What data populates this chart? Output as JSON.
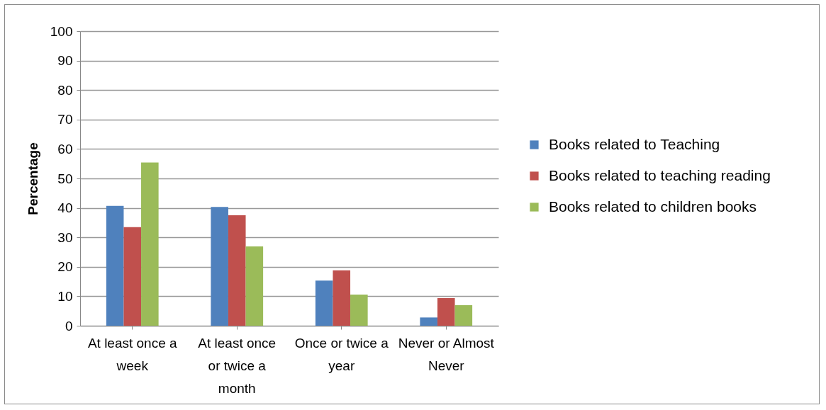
{
  "chart_data": {
    "type": "bar",
    "ylabel": "Percentage",
    "categories": [
      "At least once a week",
      "At least once or twice a month",
      "Once or twice a year",
      "Never or Almost Never"
    ],
    "series": [
      {
        "name": "Books related to Teaching",
        "color": "#4f81bd",
        "values": [
          40.7,
          40.3,
          15.3,
          2.8
        ]
      },
      {
        "name": "Books related to teaching reading",
        "color": "#c0504d",
        "values": [
          33.5,
          37.5,
          18.8,
          9.4
        ]
      },
      {
        "name": "Books related to children books",
        "color": "#9bbb59",
        "values": [
          55.4,
          26.9,
          10.6,
          7.0
        ]
      }
    ],
    "ylim": [
      0,
      100
    ],
    "yticks": [
      0,
      10,
      20,
      30,
      40,
      50,
      60,
      70,
      80,
      90,
      100
    ],
    "grid": "y",
    "legend": "right"
  }
}
